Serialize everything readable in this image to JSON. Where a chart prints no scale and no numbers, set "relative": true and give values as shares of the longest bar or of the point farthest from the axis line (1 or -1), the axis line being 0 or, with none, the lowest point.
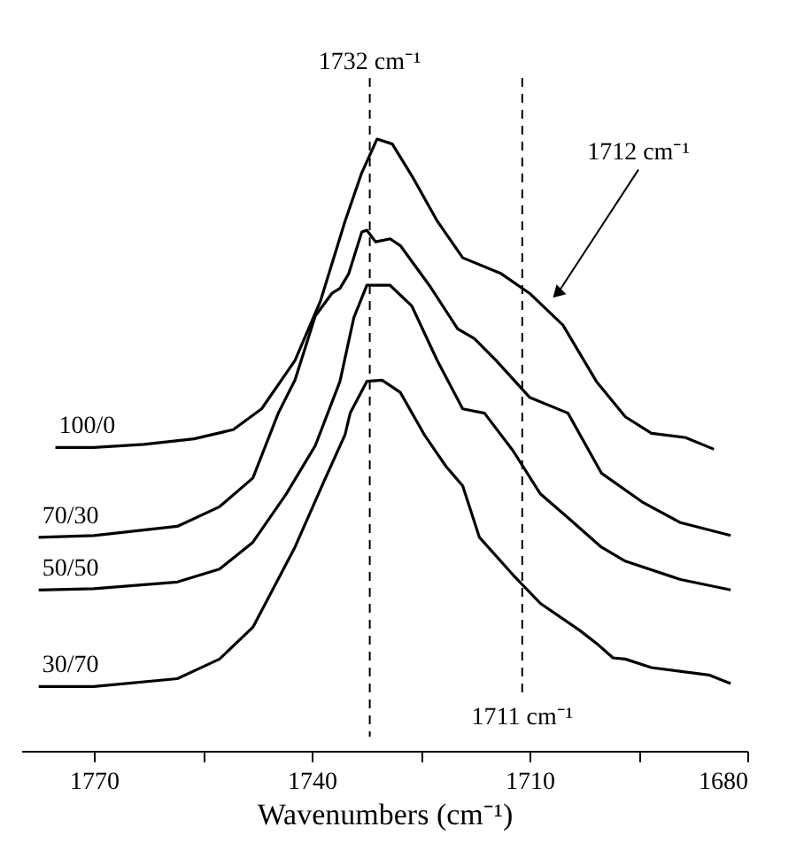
{
  "chart_data": {
    "type": "line",
    "relative": true,
    "xlabel": "Wavenumbers (cm⁻¹)",
    "xlim": [
      1780,
      1680
    ],
    "xticks": [
      1770,
      {
        "value": 1755,
        "label": null
      },
      1740,
      {
        "value": 1725,
        "label": null
      },
      1710,
      {
        "value": 1695,
        "label": null
      },
      1680
    ],
    "tick_labels": "x",
    "grid": false,
    "legend": false,
    "marker": "none",
    "line_style": "solid",
    "series": [
      {
        "name": "100/0",
        "color": "#000000",
        "x": [
          1775.3,
          1770,
          1763.1,
          1756.2,
          1750.8,
          1746.9,
          1742.3,
          1738.8,
          1735.4,
          1733.1,
          1731,
          1728.9,
          1726.2,
          1722.7,
          1719.2,
          1713.9,
          1710,
          1705.4,
          1700.8,
          1696.8,
          1693.2,
          1688.5,
          1684.6
        ],
        "values": [
          0.496,
          0.496,
          0.501,
          0.51,
          0.525,
          0.559,
          0.638,
          0.735,
          0.866,
          0.945,
          1.0,
          0.992,
          0.94,
          0.866,
          0.806,
          0.78,
          0.748,
          0.696,
          0.604,
          0.546,
          0.519,
          0.512,
          0.493
        ]
      },
      {
        "name": "70/30",
        "color": "#000000",
        "x": [
          1777.6,
          1770,
          1758.5,
          1752.7,
          1748.1,
          1744.6,
          1742.3,
          1739.5,
          1737.2,
          1736.1,
          1734.9,
          1733.1,
          1732.4,
          1731.2,
          1729.2,
          1727.8,
          1723.8,
          1719.9,
          1717.6,
          1714.6,
          1710,
          1704.7,
          1700.1,
          1694.5,
          1689.2,
          1682.3
        ],
        "values": [
          0.349,
          0.352,
          0.367,
          0.399,
          0.446,
          0.552,
          0.606,
          0.711,
          0.748,
          0.756,
          0.78,
          0.848,
          0.851,
          0.832,
          0.837,
          0.826,
          0.761,
          0.69,
          0.674,
          0.638,
          0.578,
          0.552,
          0.454,
          0.407,
          0.373,
          0.352
        ]
      },
      {
        "name": "50/50",
        "color": "#000000",
        "x": [
          1777.6,
          1770,
          1758.5,
          1752.7,
          1748.1,
          1743.5,
          1739.5,
          1736.1,
          1734.2,
          1732.4,
          1729.2,
          1726.2,
          1722.7,
          1719.2,
          1716.2,
          1712.3,
          1708.5,
          1704.7,
          1700.1,
          1696.8,
          1689.2,
          1682.3
        ],
        "values": [
          0.263,
          0.265,
          0.276,
          0.297,
          0.341,
          0.42,
          0.499,
          0.604,
          0.708,
          0.761,
          0.761,
          0.727,
          0.638,
          0.559,
          0.552,
          0.491,
          0.42,
          0.381,
          0.333,
          0.31,
          0.28,
          0.263
        ]
      },
      {
        "name": "30/70",
        "color": "#000000",
        "x": [
          1777.6,
          1770,
          1758.5,
          1752.7,
          1748.1,
          1742.3,
          1738.4,
          1735.4,
          1734.7,
          1732.4,
          1730.3,
          1727.8,
          1724.5,
          1721.5,
          1719.2,
          1716.9,
          1712.3,
          1708.5,
          1703.1,
          1700.8,
          1698.5,
          1696.8,
          1693.2,
          1685.3,
          1682.3
        ],
        "values": [
          0.105,
          0.105,
          0.118,
          0.15,
          0.202,
          0.333,
          0.438,
          0.517,
          0.552,
          0.604,
          0.606,
          0.586,
          0.517,
          0.465,
          0.433,
          0.349,
          0.288,
          0.241,
          0.197,
          0.176,
          0.152,
          0.15,
          0.136,
          0.124,
          0.11
        ]
      }
    ],
    "ref_lines": [
      {
        "axis": "x",
        "value": 1732,
        "label": "1732 cm⁻¹",
        "line_style": "dashed",
        "color": "#000000"
      },
      {
        "axis": "x",
        "value": 1711,
        "label": "1711 cm⁻¹",
        "line_style": "dashed",
        "color": "#000000"
      }
    ],
    "annotations": [
      {
        "text": "1712 cm⁻¹",
        "x": 1706,
        "y": 0.75
      }
    ]
  }
}
